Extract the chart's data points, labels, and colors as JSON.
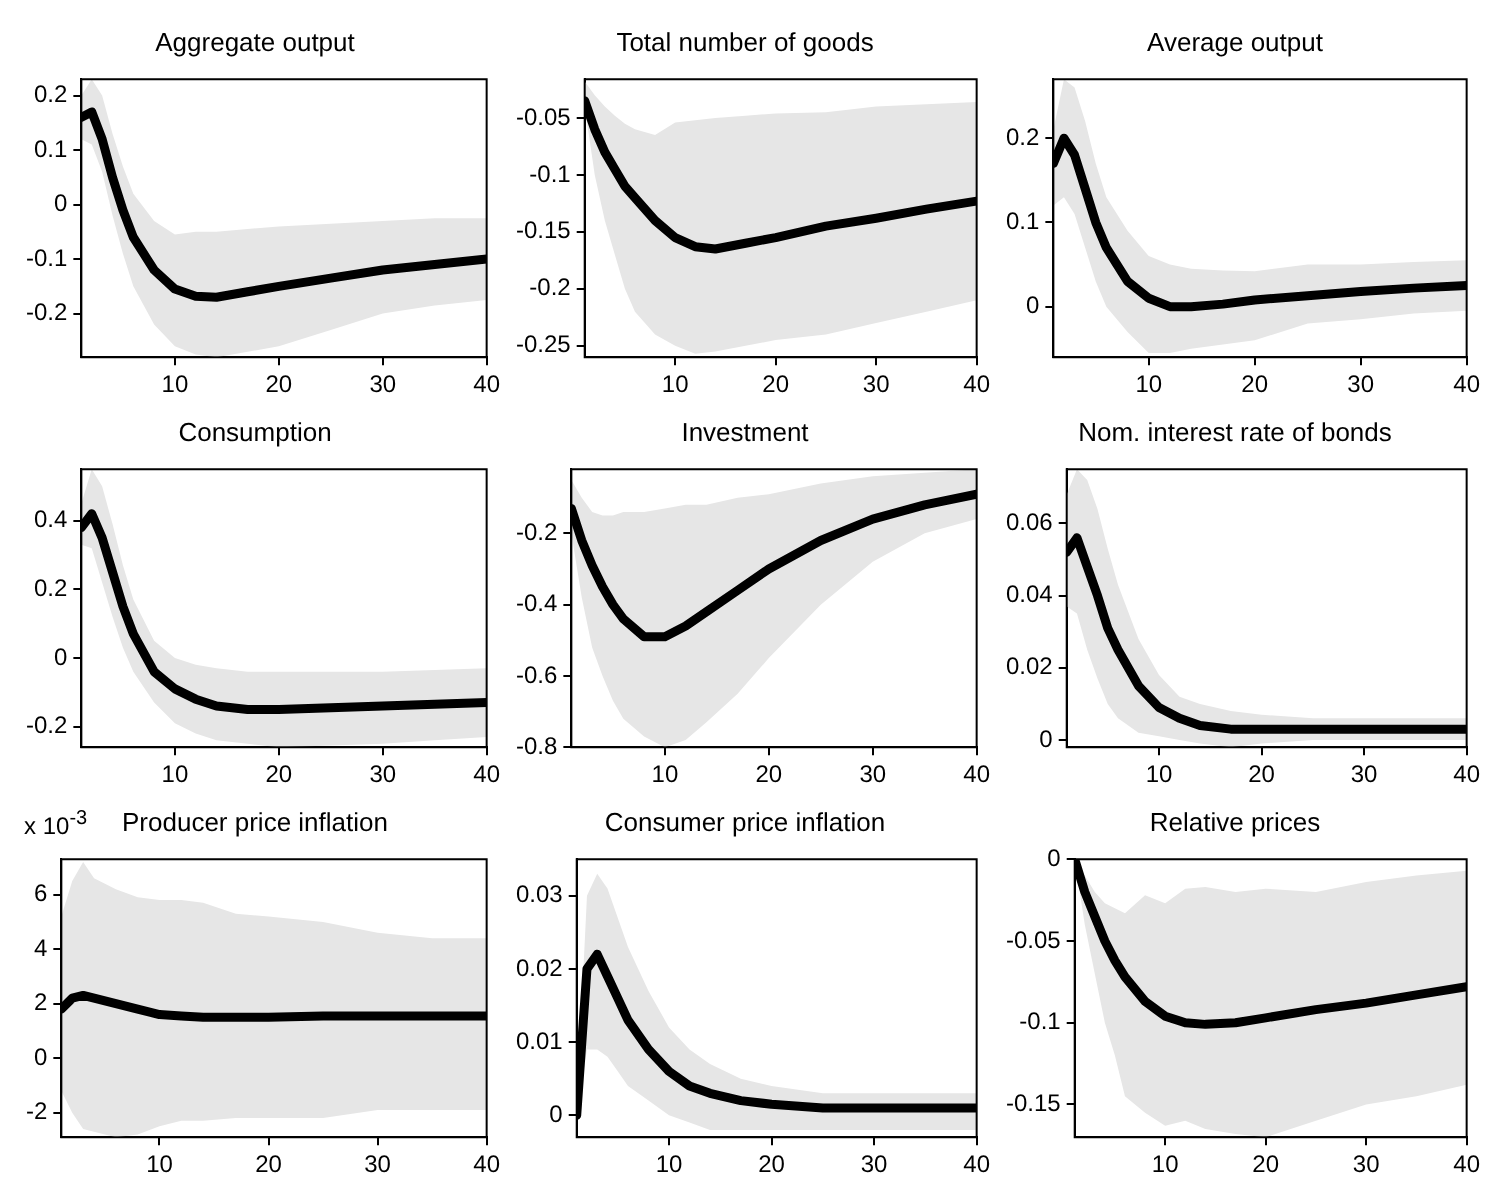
{
  "chart_data": [
    {
      "type": "line",
      "title": "Aggregate output",
      "x": [
        1,
        2,
        3,
        4,
        5,
        6,
        8,
        10,
        12,
        14,
        17,
        20,
        25,
        30,
        35,
        40
      ],
      "xlim": [
        1,
        40
      ],
      "xticks": [
        10,
        20,
        30,
        40
      ],
      "ylim": [
        -0.28,
        0.23
      ],
      "yticks": [
        -0.2,
        -0.1,
        0,
        0.1,
        0.2
      ],
      "series": [
        {
          "color": "#000000",
          "values": [
            0.16,
            0.17,
            0.12,
            0.05,
            -0.01,
            -0.06,
            -0.12,
            -0.155,
            -0.168,
            -0.17,
            -0.16,
            -0.15,
            -0.135,
            -0.12,
            -0.11,
            -0.1
          ],
          "upper": [
            0.2,
            0.23,
            0.2,
            0.13,
            0.07,
            0.02,
            -0.03,
            -0.055,
            -0.05,
            -0.05,
            -0.045,
            -0.04,
            -0.035,
            -0.03,
            -0.025,
            -0.025
          ],
          "lower": [
            0.12,
            0.11,
            0.06,
            -0.02,
            -0.09,
            -0.15,
            -0.22,
            -0.26,
            -0.275,
            -0.28,
            -0.27,
            -0.26,
            -0.23,
            -0.2,
            -0.185,
            -0.175
          ]
        }
      ]
    },
    {
      "type": "line",
      "title": "Total number of goods",
      "x": [
        1,
        2,
        3,
        4,
        5,
        6,
        8,
        10,
        12,
        14,
        17,
        20,
        25,
        30,
        35,
        40
      ],
      "xlim": [
        1,
        40
      ],
      "xticks": [
        10,
        20,
        30,
        40
      ],
      "ylim": [
        -0.26,
        -0.016
      ],
      "yticks": [
        -0.25,
        -0.2,
        -0.15,
        -0.1,
        -0.05
      ],
      "series": [
        {
          "color": "#000000",
          "values": [
            -0.035,
            -0.06,
            -0.08,
            -0.095,
            -0.11,
            -0.12,
            -0.14,
            -0.155,
            -0.163,
            -0.165,
            -0.16,
            -0.155,
            -0.145,
            -0.138,
            -0.13,
            -0.123
          ],
          "upper": [
            -0.018,
            -0.03,
            -0.04,
            -0.048,
            -0.055,
            -0.06,
            -0.065,
            -0.054,
            -0.052,
            -0.05,
            -0.048,
            -0.046,
            -0.045,
            -0.04,
            -0.038,
            -0.036
          ],
          "lower": [
            -0.04,
            -0.1,
            -0.14,
            -0.17,
            -0.2,
            -0.22,
            -0.24,
            -0.25,
            -0.257,
            -0.255,
            -0.25,
            -0.245,
            -0.24,
            -0.23,
            -0.22,
            -0.21
          ]
        }
      ]
    },
    {
      "type": "line",
      "title": "Average output",
      "x": [
        1,
        2,
        3,
        4,
        5,
        6,
        8,
        10,
        12,
        14,
        17,
        20,
        25,
        30,
        35,
        40
      ],
      "xlim": [
        1,
        40
      ],
      "xticks": [
        10,
        20,
        30,
        40
      ],
      "ylim": [
        -0.06,
        0.27
      ],
      "yticks": [
        0,
        0.1,
        0.2
      ],
      "series": [
        {
          "color": "#000000",
          "values": [
            0.17,
            0.2,
            0.18,
            0.14,
            0.1,
            0.07,
            0.03,
            0.01,
            0,
            0,
            0.003,
            0.008,
            0.013,
            0.018,
            0.022,
            0.025
          ],
          "upper": [
            0.21,
            0.27,
            0.26,
            0.22,
            0.17,
            0.13,
            0.09,
            0.06,
            0.05,
            0.045,
            0.043,
            0.042,
            0.05,
            0.05,
            0.053,
            0.055
          ],
          "lower": [
            0.12,
            0.13,
            0.11,
            0.07,
            0.03,
            0,
            -0.03,
            -0.055,
            -0.055,
            -0.05,
            -0.045,
            -0.04,
            -0.02,
            -0.015,
            -0.008,
            -0.005
          ]
        }
      ]
    },
    {
      "type": "line",
      "title": "Consumption",
      "x": [
        1,
        2,
        3,
        4,
        5,
        6,
        8,
        10,
        12,
        14,
        17,
        20,
        25,
        30,
        35,
        40
      ],
      "xlim": [
        1,
        40
      ],
      "xticks": [
        10,
        20,
        30,
        40
      ],
      "ylim": [
        -0.26,
        0.55
      ],
      "yticks": [
        -0.2,
        0,
        0.2,
        0.4
      ],
      "series": [
        {
          "color": "#000000",
          "values": [
            0.38,
            0.42,
            0.35,
            0.25,
            0.15,
            0.07,
            -0.04,
            -0.09,
            -0.12,
            -0.14,
            -0.15,
            -0.15,
            -0.145,
            -0.14,
            -0.135,
            -0.13
          ],
          "upper": [
            0.45,
            0.55,
            0.5,
            0.39,
            0.27,
            0.17,
            0.05,
            0,
            -0.02,
            -0.03,
            -0.04,
            -0.04,
            -0.04,
            -0.04,
            -0.035,
            -0.03
          ],
          "lower": [
            0.33,
            0.32,
            0.22,
            0.12,
            0.03,
            -0.04,
            -0.13,
            -0.19,
            -0.22,
            -0.24,
            -0.25,
            -0.26,
            -0.255,
            -0.25,
            -0.24,
            -0.23
          ]
        }
      ]
    },
    {
      "type": "line",
      "title": "Investment",
      "x": [
        1,
        2,
        3,
        4,
        5,
        6,
        8,
        10,
        12,
        14,
        17,
        20,
        25,
        30,
        35,
        40
      ],
      "xlim": [
        1,
        40
      ],
      "xticks": [
        10,
        20,
        30,
        40
      ],
      "ylim": [
        -0.8,
        -0.02
      ],
      "yticks": [
        -0.8,
        -0.6,
        -0.4,
        -0.2
      ],
      "series": [
        {
          "color": "#000000",
          "values": [
            -0.13,
            -0.22,
            -0.29,
            -0.35,
            -0.4,
            -0.44,
            -0.49,
            -0.49,
            -0.46,
            -0.42,
            -0.36,
            -0.3,
            -0.22,
            -0.16,
            -0.12,
            -0.09
          ],
          "upper": [
            -0.05,
            -0.1,
            -0.14,
            -0.15,
            -0.15,
            -0.14,
            -0.14,
            -0.13,
            -0.12,
            -0.12,
            -0.1,
            -0.09,
            -0.06,
            -0.04,
            -0.03,
            -0.02
          ],
          "lower": [
            -0.2,
            -0.38,
            -0.52,
            -0.6,
            -0.67,
            -0.72,
            -0.77,
            -0.8,
            -0.78,
            -0.73,
            -0.65,
            -0.55,
            -0.4,
            -0.28,
            -0.2,
            -0.16
          ]
        }
      ]
    },
    {
      "type": "line",
      "title": "Nom. interest rate of bonds",
      "x": [
        1,
        2,
        3,
        4,
        5,
        6,
        8,
        10,
        12,
        14,
        17,
        20,
        25,
        30,
        35,
        40
      ],
      "xlim": [
        1,
        40
      ],
      "xticks": [
        10,
        20,
        30,
        40
      ],
      "ylim": [
        -0.002,
        0.075
      ],
      "yticks": [
        0,
        0.02,
        0.04,
        0.06
      ],
      "series": [
        {
          "color": "#000000",
          "values": [
            0.052,
            0.056,
            0.048,
            0.04,
            0.031,
            0.025,
            0.015,
            0.009,
            0.006,
            0.004,
            0.003,
            0.003,
            0.003,
            0.003,
            0.003,
            0.003
          ],
          "upper": [
            0.068,
            0.075,
            0.072,
            0.064,
            0.053,
            0.043,
            0.028,
            0.018,
            0.012,
            0.01,
            0.008,
            0.007,
            0.006,
            0.006,
            0.006,
            0.006
          ],
          "lower": [
            0.037,
            0.035,
            0.025,
            0.017,
            0.01,
            0.006,
            0.002,
            0.001,
            0,
            -0.001,
            -0.002,
            -0.001,
            0,
            0,
            0,
            0
          ]
        }
      ]
    },
    {
      "type": "line",
      "title": "Producer price inflation",
      "annotations": [
        "x 10$^{-3}$"
      ],
      "x": [
        1,
        2,
        3,
        4,
        5,
        6,
        8,
        10,
        12,
        14,
        17,
        20,
        25,
        30,
        35,
        40
      ],
      "xlim": [
        1,
        40
      ],
      "xticks": [
        10,
        20,
        30,
        40
      ],
      "ylim": [
        -2.9,
        7.3
      ],
      "yticks": [
        -2,
        0,
        2,
        4,
        6
      ],
      "series": [
        {
          "color": "#000000",
          "values": [
            1.8,
            2.2,
            2.3,
            2.2,
            2.1,
            2,
            1.8,
            1.6,
            1.55,
            1.5,
            1.5,
            1.5,
            1.55,
            1.55,
            1.55,
            1.55
          ],
          "upper": [
            5.2,
            6.5,
            7.2,
            6.6,
            6.4,
            6.2,
            5.9,
            5.8,
            5.8,
            5.7,
            5.3,
            5.2,
            5,
            4.6,
            4.4,
            4.4
          ],
          "lower": [
            -1.2,
            -2,
            -2.6,
            -2.7,
            -2.8,
            -2.9,
            -2.8,
            -2.5,
            -2.3,
            -2.3,
            -2.2,
            -2.2,
            -2.2,
            -1.9,
            -1.9,
            -1.9
          ]
        }
      ]
    },
    {
      "type": "line",
      "title": "Consumer price inflation",
      "x": [
        1,
        2,
        3,
        4,
        5,
        6,
        8,
        10,
        12,
        14,
        17,
        20,
        25,
        30,
        35,
        40
      ],
      "xlim": [
        1,
        40
      ],
      "xticks": [
        10,
        20,
        30,
        40
      ],
      "ylim": [
        -0.003,
        0.035
      ],
      "yticks": [
        0,
        0.01,
        0.02,
        0.03
      ],
      "series": [
        {
          "color": "#000000",
          "values": [
            0,
            0.02,
            0.022,
            0.019,
            0.016,
            0.013,
            0.009,
            0.006,
            0.004,
            0.003,
            0.002,
            0.0015,
            0.001,
            0.001,
            0.001,
            0.001
          ],
          "upper": [
            0.001,
            0.03,
            0.033,
            0.031,
            0.027,
            0.023,
            0.017,
            0.012,
            0.009,
            0.007,
            0.005,
            0.004,
            0.003,
            0.003,
            0.003,
            0.003
          ],
          "lower": [
            0,
            0.009,
            0.009,
            0.008,
            0.006,
            0.004,
            0.002,
            0,
            -0.001,
            -0.002,
            -0.002,
            -0.002,
            -0.002,
            -0.002,
            -0.002,
            -0.002
          ]
        }
      ]
    },
    {
      "type": "line",
      "title": "Relative prices",
      "x": [
        1,
        2,
        3,
        4,
        5,
        6,
        8,
        10,
        12,
        14,
        17,
        20,
        25,
        30,
        35,
        40
      ],
      "xlim": [
        1,
        40
      ],
      "xticks": [
        10,
        20,
        30,
        40
      ],
      "ylim": [
        -0.17,
        0
      ],
      "yticks": [
        -0.15,
        -0.1,
        -0.05,
        0
      ],
      "series": [
        {
          "color": "#000000",
          "values": [
            0,
            -0.02,
            -0.035,
            -0.05,
            -0.062,
            -0.072,
            -0.087,
            -0.096,
            -0.1,
            -0.101,
            -0.1,
            -0.097,
            -0.092,
            -0.088,
            -0.083,
            -0.078
          ],
          "upper": [
            0,
            -0.01,
            -0.02,
            -0.027,
            -0.03,
            -0.033,
            -0.022,
            -0.027,
            -0.018,
            -0.017,
            -0.02,
            -0.018,
            -0.02,
            -0.014,
            -0.01,
            -0.007
          ],
          "lower": [
            0,
            -0.04,
            -0.07,
            -0.1,
            -0.12,
            -0.145,
            -0.155,
            -0.163,
            -0.16,
            -0.165,
            -0.168,
            -0.17,
            -0.16,
            -0.15,
            -0.145,
            -0.138
          ]
        }
      ]
    }
  ]
}
